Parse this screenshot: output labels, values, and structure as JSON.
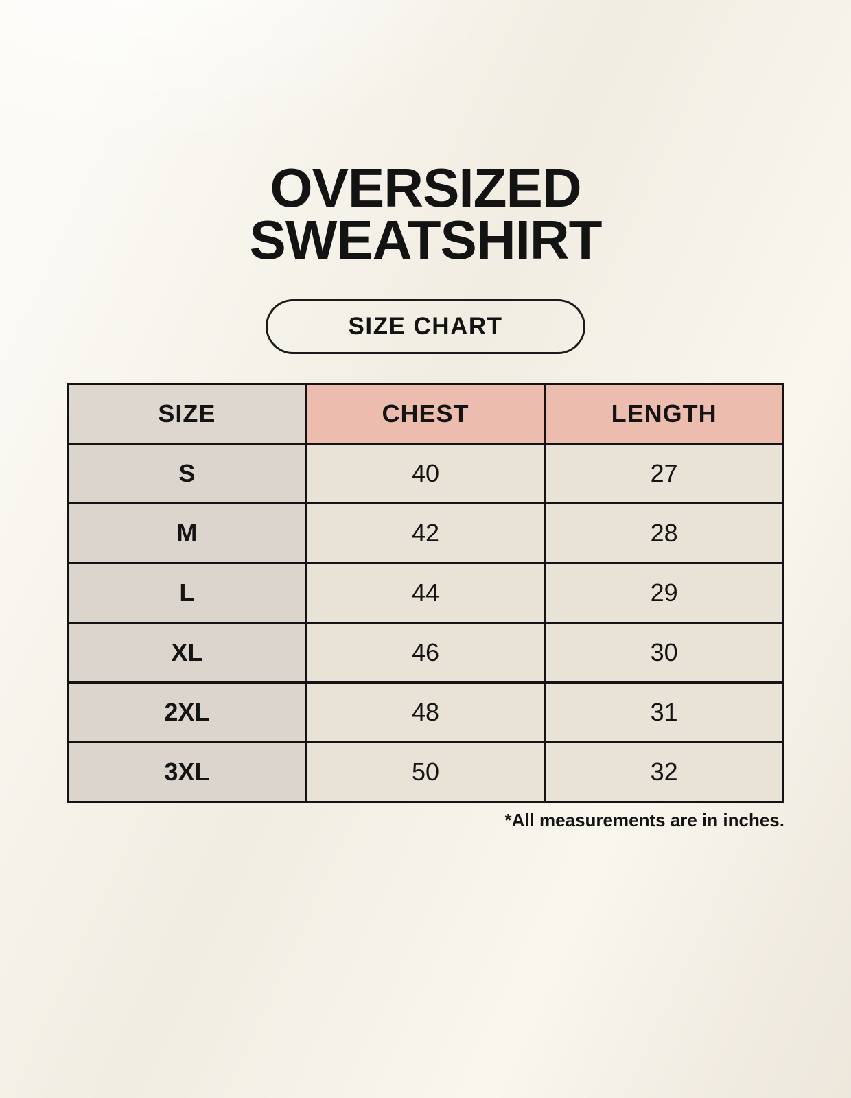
{
  "header": {
    "title_line1": "OVERSIZED",
    "title_line2": "SWEATSHIRT",
    "badge_label": "SIZE CHART"
  },
  "chart_data": {
    "type": "table",
    "title": "OVERSIZED SWEATSHIRT",
    "subtitle": "SIZE CHART",
    "columns": [
      "SIZE",
      "CHEST",
      "LENGTH"
    ],
    "rows": [
      [
        "S",
        "40",
        "27"
      ],
      [
        "M",
        "42",
        "28"
      ],
      [
        "L",
        "44",
        "29"
      ],
      [
        "XL",
        "46",
        "30"
      ],
      [
        "2XL",
        "48",
        "31"
      ],
      [
        "3XL",
        "50",
        "32"
      ]
    ],
    "footnote": "*All measurements are in inches.",
    "units": "inches"
  },
  "colors": {
    "page_background": "#F6F2E9",
    "size_header_bg": "#DED7D0",
    "measure_header_bg": "#ECBCAE",
    "size_label_cell_bg": "#DCD5CE",
    "value_cell_bg": "#E9E3D7",
    "border": "#131313",
    "text": "#131313"
  }
}
